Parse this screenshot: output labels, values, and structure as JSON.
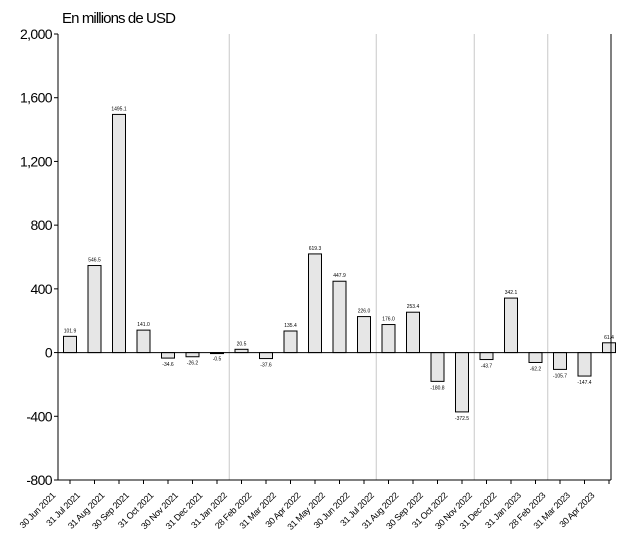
{
  "chart_data": {
    "type": "bar",
    "unit_label": "En millions de USD",
    "categories": [
      "30 Jun 2021",
      "31 Jul 2021",
      "31 Aug 2021",
      "30 Sep 2021",
      "31 Oct 2021",
      "30 Nov 2021",
      "31 Dec 2021",
      "31 Jan 2022",
      "28 Feb 2022",
      "31 Mar 2022",
      "30 Apr 2022",
      "31 May 2022",
      "30 Jun 2022",
      "31 Jul 2022",
      "31 Aug 2022",
      "30 Sep 2022",
      "31 Oct 2022",
      "30 Nov 2022",
      "31 Dec 2022",
      "31 Jan 2023",
      "28 Feb 2023",
      "31 Mar 2023",
      "30 Apr 2023"
    ],
    "values": [
      101.9,
      546.5,
      1495.1,
      141.0,
      -34.6,
      -26.2,
      -0.5,
      20.5,
      -37.6,
      135.4,
      619.3,
      447.9,
      226.0,
      176.0,
      253.4,
      -180.8,
      -372.5,
      -43.7,
      342.1,
      -62.2,
      -105.7,
      -147.4,
      61.4
    ],
    "data_labels": [
      "101.9",
      "546.5",
      "1495.1",
      "141.0",
      "-34.6",
      "-26.2",
      "-0.5",
      "20.5",
      "-37.6",
      "135.4",
      "619.3",
      "447.9",
      "226.0",
      "176.0",
      "253.4",
      "-180.8",
      "-372.5",
      "-43.7",
      "342.1",
      "-62.2",
      "-105.7",
      "-147.4",
      "61.4"
    ],
    "ylim": [
      -800,
      2000
    ],
    "y_ticks": [
      -800,
      -400,
      0,
      400,
      800,
      1200,
      1600,
      2000
    ],
    "y_tick_labels": [
      "-800",
      "-400",
      "0",
      "400",
      "800",
      "1,200",
      "1,600",
      "2,000"
    ],
    "grid": "vertical",
    "colors": {
      "bar_fill": "#e6e6e6",
      "bar_stroke": "#000000",
      "grid": "#c8c8c8"
    }
  }
}
